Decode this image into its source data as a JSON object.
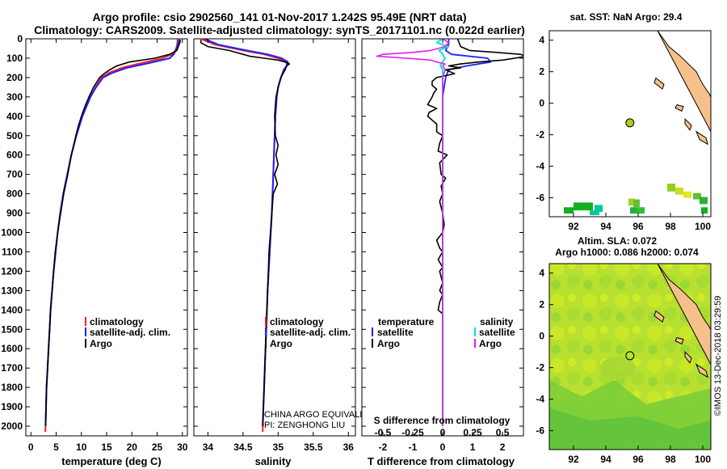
{
  "header": {
    "title_line1": "Argo profile: csio 2902560_141 01-Nov-2017 1.242S 95.49E (NRT data)",
    "title_line2": "Climatology: CARS2009. Satellite-adjusted climatology: synTS_20171101.nc (0.022d earlier)"
  },
  "colors": {
    "climatology": "#ff2020",
    "satellite": "#2020ff",
    "argo": "#000000",
    "sat_salinity": "#00e0e0",
    "argo_salinity": "#e020e0",
    "land": "#f5c08a"
  },
  "depth_axis": {
    "ylim": [
      2050,
      0
    ],
    "ticks": [
      0,
      100,
      200,
      300,
      400,
      500,
      600,
      700,
      800,
      900,
      1000,
      1100,
      1200,
      1300,
      1400,
      1500,
      1600,
      1700,
      1800,
      1900,
      2000
    ]
  },
  "note": {
    "line1": "CHINA ARGO EQUIVALENT",
    "line2": "PI: ZENGHONG LIU"
  },
  "chart_data": [
    {
      "id": "temperature",
      "type": "line",
      "xlabel": "temperature (deg C)",
      "xlim": [
        -1,
        31
      ],
      "xticks": [
        0,
        5,
        10,
        15,
        20,
        25,
        30
      ],
      "legend": {
        "placement": "lower-middle",
        "entries": [
          "climatology",
          "satellite-adj. clim.",
          "Argo"
        ]
      },
      "series": [
        {
          "name": "climatology",
          "depth": [
            0,
            20,
            40,
            60,
            80,
            100,
            125,
            150,
            175,
            200,
            250,
            300,
            350,
            400,
            500,
            600,
            700,
            800,
            900,
            1000,
            1100,
            1200,
            1300,
            1400,
            1500,
            1600,
            1700,
            1800,
            1900,
            2000,
            2030
          ],
          "values": [
            29.1,
            29.0,
            28.9,
            28.6,
            28.0,
            26.0,
            22.0,
            18.0,
            15.5,
            14.0,
            12.8,
            11.8,
            11.0,
            10.2,
            9.0,
            8.0,
            7.2,
            6.4,
            5.8,
            5.3,
            4.9,
            4.5,
            4.2,
            3.9,
            3.7,
            3.5,
            3.3,
            3.1,
            3.0,
            2.9,
            2.85
          ]
        },
        {
          "name": "satellite-adj. clim.",
          "depth": [
            0,
            20,
            40,
            60,
            80,
            100,
            125,
            150,
            175,
            200,
            250,
            300,
            350,
            400,
            500,
            600,
            700,
            800,
            900,
            1000,
            1100,
            1200,
            1300,
            1400,
            1500,
            1600,
            1700,
            1800,
            1900,
            2000
          ],
          "values": [
            29.3,
            29.2,
            29.0,
            28.7,
            28.3,
            27.5,
            23.5,
            19.0,
            16.2,
            14.3,
            12.9,
            11.8,
            11.0,
            10.2,
            9.0,
            8.0,
            7.2,
            6.4,
            5.8,
            5.3,
            4.9,
            4.5,
            4.2,
            3.9,
            3.7,
            3.5,
            3.3,
            3.1,
            3.0,
            2.9
          ]
        },
        {
          "name": "Argo",
          "depth": [
            5,
            20,
            40,
            60,
            80,
            100,
            120,
            140,
            160,
            180,
            200,
            250,
            300,
            350,
            400,
            450,
            500,
            600,
            700,
            800,
            900,
            1000,
            1100,
            1200,
            1300,
            1400,
            1500,
            1600,
            1700,
            1800,
            1900,
            2000
          ],
          "values": [
            29.6,
            29.5,
            29.2,
            28.9,
            27.5,
            24.5,
            19.5,
            17.0,
            15.6,
            14.5,
            13.6,
            12.4,
            11.5,
            10.7,
            10.0,
            9.4,
            8.9,
            8.0,
            7.3,
            6.5,
            5.9,
            5.3,
            4.8,
            4.5,
            4.2,
            3.9,
            3.7,
            3.5,
            3.3,
            3.1,
            3.0,
            2.9
          ]
        }
      ]
    },
    {
      "id": "salinity",
      "type": "line",
      "xlabel": "salinity",
      "xlim": [
        33.8,
        36.1
      ],
      "xticks": [
        34,
        34.5,
        35,
        35.5,
        36
      ],
      "legend": {
        "placement": "lower-middle",
        "entries": [
          "climatology",
          "satellite-adj. clim.",
          "Argo"
        ]
      },
      "series": [
        {
          "name": "climatology",
          "depth": [
            0,
            30,
            60,
            80,
            100,
            120,
            140,
            160,
            200,
            250,
            300,
            400,
            500,
            700,
            900,
            1100,
            1300,
            1500,
            1700,
            1900,
            2030
          ],
          "values": [
            33.9,
            34.1,
            34.5,
            34.8,
            35.0,
            35.12,
            35.12,
            35.08,
            35.04,
            35.0,
            34.98,
            34.96,
            34.95,
            34.93,
            34.91,
            34.88,
            34.85,
            34.83,
            34.81,
            34.79,
            34.78
          ]
        },
        {
          "name": "satellite-adj. clim.",
          "depth": [
            0,
            30,
            60,
            80,
            100,
            120,
            140,
            160,
            200,
            250,
            300,
            400,
            500,
            700,
            900,
            1100,
            1300,
            1500,
            1700,
            1900,
            2000
          ],
          "values": [
            33.95,
            34.15,
            34.55,
            34.85,
            35.05,
            35.14,
            35.12,
            35.08,
            35.04,
            35.0,
            34.98,
            34.96,
            34.95,
            34.93,
            34.91,
            34.88,
            34.85,
            34.83,
            34.81,
            34.79,
            34.78
          ]
        },
        {
          "name": "Argo",
          "depth": [
            5,
            20,
            40,
            60,
            80,
            90,
            100,
            110,
            120,
            130,
            140,
            160,
            200,
            250,
            300,
            400,
            500,
            550,
            600,
            650,
            700,
            750,
            800,
            900,
            1000,
            1100,
            1200,
            1300,
            1400,
            1500,
            1600,
            1800,
            2000
          ],
          "values": [
            33.9,
            33.9,
            34.0,
            34.3,
            34.5,
            34.6,
            34.8,
            35.0,
            35.1,
            35.16,
            35.12,
            35.1,
            35.04,
            35.0,
            34.97,
            34.95,
            34.96,
            35.0,
            34.97,
            35.0,
            34.95,
            34.99,
            34.93,
            34.91,
            34.89,
            34.87,
            34.86,
            34.85,
            34.84,
            34.83,
            34.82,
            34.8,
            34.78
          ]
        }
      ]
    },
    {
      "id": "difference",
      "type": "line",
      "xlabel": "T difference from climatology",
      "x2label": "S difference from climatology",
      "xlim": [
        -2.7,
        2.7
      ],
      "xticks": [
        -2,
        -1,
        0,
        1,
        2
      ],
      "x2ticks": [
        -0.5,
        -0.25,
        0,
        0.25,
        0.5
      ],
      "x2tick_labels": [
        "-0.5",
        "-0.25",
        "0",
        "0.25",
        "0.5"
      ],
      "legend": {
        "placement": "lower",
        "groups": [
          {
            "title": "temperature",
            "entries": [
              "satellite",
              "Argo"
            ]
          },
          {
            "title": "salinity",
            "entries": [
              "satellite",
              "Argo"
            ]
          }
        ]
      },
      "series": [
        {
          "name": "temperature satellite",
          "depth": [
            0,
            30,
            60,
            80,
            100,
            120,
            140,
            160,
            200,
            300,
            400,
            600,
            800,
            1000,
            1500,
            2000
          ],
          "values": [
            0.2,
            0.2,
            0.1,
            0.3,
            1.5,
            1.6,
            0.8,
            0.2,
            0.1,
            0.0,
            0.0,
            0.0,
            0.0,
            0.0,
            0.0,
            0.0
          ]
        },
        {
          "name": "temperature Argo",
          "depth": [
            0,
            40,
            60,
            70,
            80,
            90,
            100,
            110,
            120,
            130,
            140,
            150,
            160,
            180,
            200,
            220,
            240,
            260,
            280,
            300,
            340,
            360,
            380,
            400,
            440,
            480,
            500,
            540,
            580,
            600,
            640,
            700,
            720,
            760,
            800,
            840,
            900,
            960,
            1000,
            1040,
            1080,
            1100,
            1140,
            1180,
            1200,
            1260,
            1300,
            1320,
            1360,
            1400,
            1420,
            1450,
            1480,
            1500,
            1600,
            1800,
            2000
          ],
          "values": [
            0.5,
            0.6,
            0.9,
            1.8,
            2.6,
            2.8,
            2.4,
            2.0,
            1.2,
            0.6,
            0.2,
            0.6,
            0.1,
            0.4,
            -0.2,
            -0.35,
            -0.35,
            -0.2,
            -0.3,
            -0.35,
            -0.5,
            -0.2,
            -0.45,
            -0.5,
            -0.2,
            -0.2,
            0.0,
            -0.1,
            -0.15,
            0.15,
            -0.1,
            -0.05,
            0.1,
            -0.05,
            0.0,
            -0.1,
            0.0,
            0.05,
            0.0,
            -0.2,
            -0.1,
            0.0,
            -0.15,
            0.0,
            -0.1,
            0.0,
            -0.1,
            0.0,
            -0.1,
            -0.15,
            0.0,
            0.0,
            0.0,
            0.0,
            0.0,
            0.0,
            0.0
          ]
        },
        {
          "name": "salinity satellite",
          "depth": [
            0,
            20,
            40,
            60,
            80,
            100,
            120,
            140,
            160,
            200,
            400,
            1000,
            2000
          ],
          "values": [
            0.0,
            -0.05,
            0.05,
            -0.03,
            0.0,
            0.02,
            0.0,
            -0.02,
            0.0,
            0.0,
            0.0,
            0.0,
            0.0
          ]
        },
        {
          "name": "salinity Argo",
          "depth": [
            0,
            20,
            40,
            60,
            70,
            80,
            90,
            100,
            110,
            120,
            130,
            140,
            160,
            200,
            300,
            500,
            700,
            1000,
            1500,
            2000
          ],
          "values": [
            0.0,
            0.05,
            0.02,
            -0.1,
            -0.25,
            -0.5,
            -0.55,
            -0.3,
            -0.1,
            -0.05,
            0.02,
            0.0,
            0.02,
            0.0,
            0.0,
            0.0,
            0.0,
            0.0,
            0.0,
            0.0
          ]
        }
      ]
    },
    {
      "id": "sst_map",
      "type": "heatmap",
      "title": "sat. SST: NaN Argo: 29.4",
      "xlim": [
        90.5,
        100.5
      ],
      "ylim": [
        -7.2,
        4.6
      ],
      "xticks": [
        92,
        94,
        96,
        98,
        100
      ],
      "yticks": [
        -6,
        -4,
        -2,
        0,
        2,
        4
      ],
      "argo_position": {
        "lon": 95.49,
        "lat": -1.242
      },
      "cells": [
        {
          "lon": 92.0,
          "lat": -6.8,
          "w": 0.6,
          "h": 0.5,
          "color": "#10b020"
        },
        {
          "lon": 92.6,
          "lat": -6.8,
          "w": 0.6,
          "h": 0.5,
          "color": "#10b020"
        },
        {
          "lon": 91.4,
          "lat": -7.0,
          "w": 0.6,
          "h": 0.4,
          "color": "#10b020"
        },
        {
          "lon": 93.3,
          "lat": -6.9,
          "w": 0.5,
          "h": 0.45,
          "color": "#00c8a0"
        },
        {
          "lon": 93.0,
          "lat": -7.1,
          "w": 0.6,
          "h": 0.3,
          "color": "#00c8a0"
        },
        {
          "lon": 95.4,
          "lat": -6.5,
          "w": 0.4,
          "h": 0.45,
          "color": "#a0d020"
        },
        {
          "lon": 95.7,
          "lat": -6.6,
          "w": 0.4,
          "h": 0.5,
          "color": "#60c030"
        },
        {
          "lon": 95.5,
          "lat": -7.0,
          "w": 0.4,
          "h": 0.4,
          "color": "#20b040"
        },
        {
          "lon": 95.9,
          "lat": -7.0,
          "w": 0.5,
          "h": 0.4,
          "color": "#30c030"
        },
        {
          "lon": 97.8,
          "lat": -5.6,
          "w": 0.5,
          "h": 0.5,
          "color": "#90d020"
        },
        {
          "lon": 98.3,
          "lat": -5.8,
          "w": 0.5,
          "h": 0.45,
          "color": "#c8e020"
        },
        {
          "lon": 98.8,
          "lat": -6.0,
          "w": 0.5,
          "h": 0.4,
          "color": "#e0e820"
        },
        {
          "lon": 99.4,
          "lat": -6.1,
          "w": 0.5,
          "h": 0.4,
          "color": "#60c030"
        },
        {
          "lon": 99.8,
          "lat": -6.4,
          "w": 0.5,
          "h": 0.45,
          "color": "#30b030"
        },
        {
          "lon": 99.9,
          "lat": -7.0,
          "w": 0.4,
          "h": 0.4,
          "color": "#10b020"
        }
      ]
    },
    {
      "id": "sla_map",
      "type": "heatmap",
      "title": "Altim. SLA: 0.072",
      "subtitle": "Argo h1000: 0.086 h2000: 0.074",
      "xlim": [
        90.5,
        100.5
      ],
      "ylim": [
        -7.2,
        4.6
      ],
      "xticks": [
        92,
        94,
        96,
        98,
        100
      ],
      "yticks": [
        -6,
        -4,
        -2,
        0,
        2,
        4
      ],
      "argo_position": {
        "lon": 95.49,
        "lat": -1.242
      }
    }
  ],
  "credit": "©IMOS 13-Dec-2018 03:29:59"
}
